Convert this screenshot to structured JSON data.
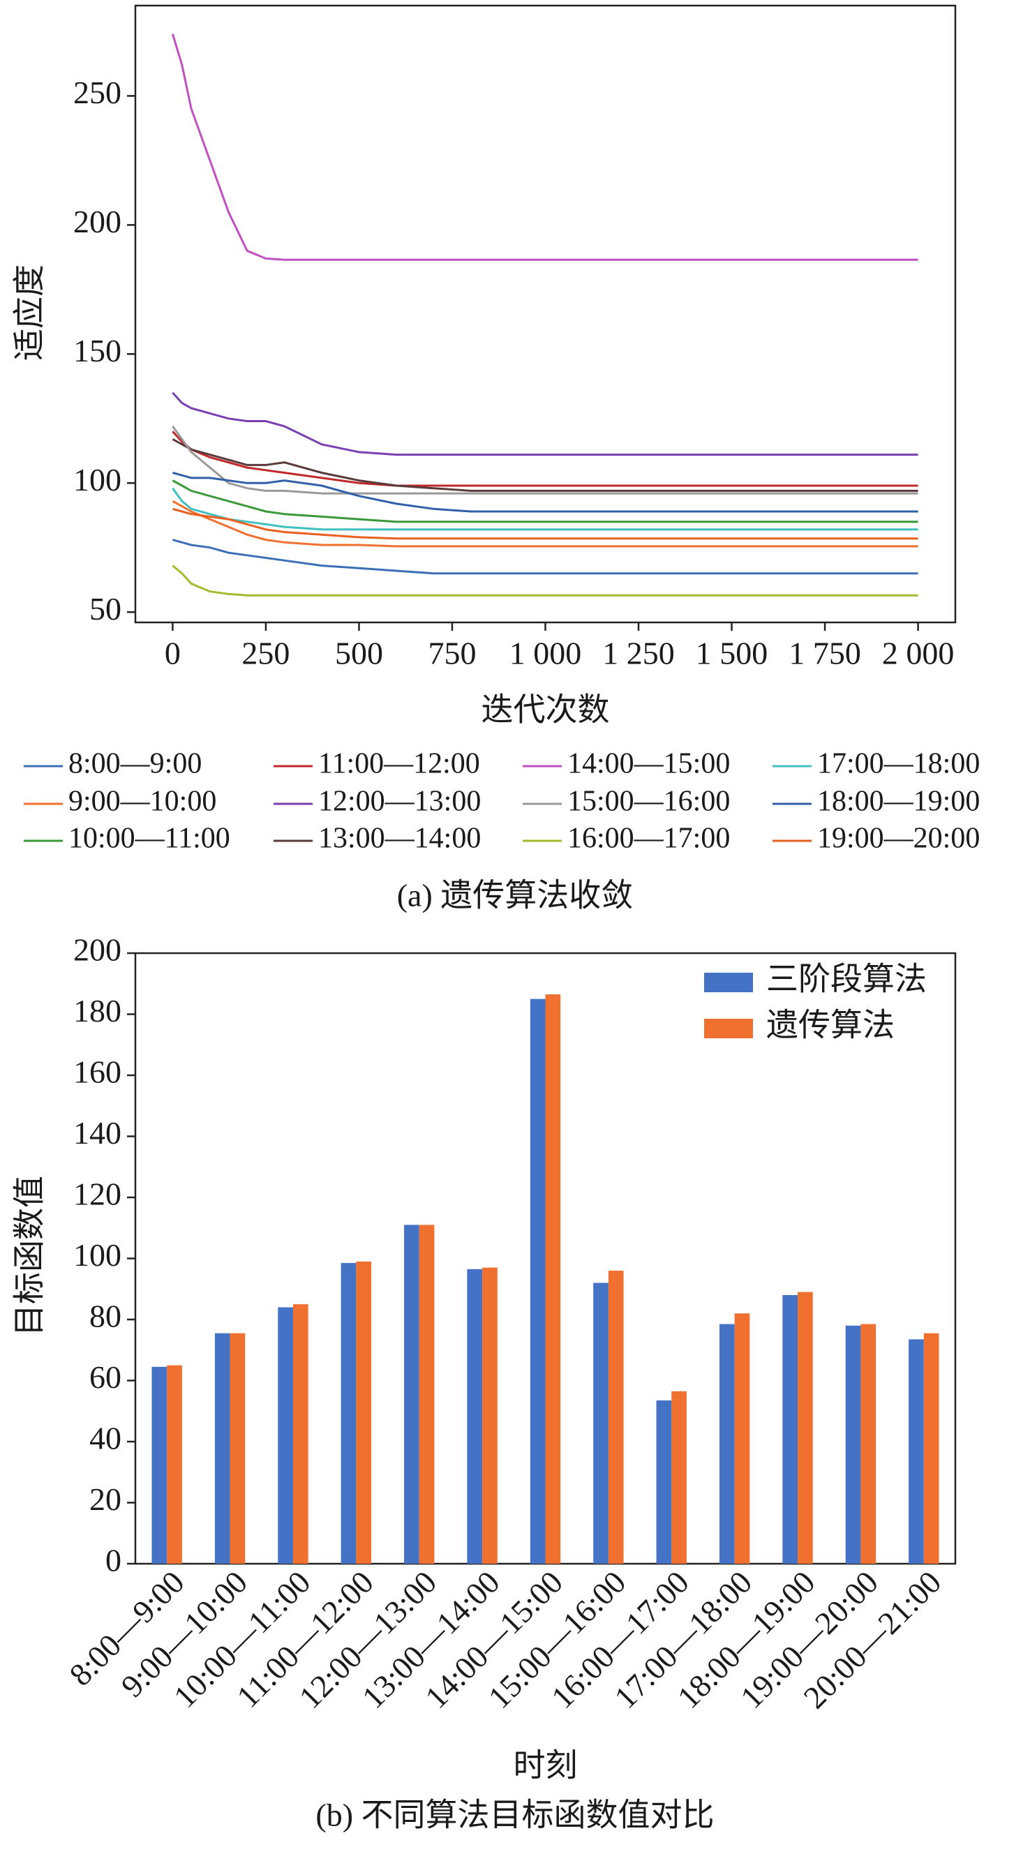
{
  "chart_data": [
    {
      "type": "line",
      "caption": "(a) 遗传算法收敛",
      "xlabel": "迭代次数",
      "ylabel": "适应度",
      "xlim": [
        -100,
        2100
      ],
      "ylim": [
        46,
        285
      ],
      "xticks": [
        0,
        250,
        500,
        750,
        {
          "value": 1000,
          "label": "1 000"
        },
        {
          "value": 1250,
          "label": "1 250"
        },
        {
          "value": 1500,
          "label": "1 500"
        },
        {
          "value": 1750,
          "label": "1 750"
        },
        {
          "value": 2000,
          "label": "2 000"
        }
      ],
      "yticks": [
        50,
        100,
        150,
        200,
        250
      ],
      "x": [
        0,
        25,
        50,
        100,
        150,
        200,
        250,
        300,
        400,
        500,
        600,
        700,
        800,
        1000,
        1500,
        2000
      ],
      "series": [
        {
          "name": "8:00—9:00",
          "color": "#3b6fb6",
          "values": [
            78,
            77,
            76,
            75,
            73,
            72,
            71,
            70,
            68,
            67,
            66,
            65,
            65,
            65,
            65,
            65
          ]
        },
        {
          "name": "9:00—10:00",
          "color": "#f07030",
          "values": [
            93,
            91,
            89,
            86,
            83,
            80,
            78,
            77,
            76,
            76,
            75.5,
            75.5,
            75.5,
            75.5,
            75.5,
            75.5
          ]
        },
        {
          "name": "10:00—11:00",
          "color": "#3a9a3a",
          "values": [
            101,
            99,
            97,
            95,
            93,
            91,
            89,
            88,
            87,
            86,
            85,
            85,
            85,
            85,
            85,
            85
          ]
        },
        {
          "name": "11:00—12:00",
          "color": "#c0282a",
          "values": [
            120,
            116,
            113,
            110,
            108,
            106,
            105,
            104,
            102,
            100,
            99,
            99,
            99,
            99,
            99,
            99
          ]
        },
        {
          "name": "12:00—13:00",
          "color": "#7a3fb0",
          "values": [
            135,
            131,
            129,
            127,
            125,
            124,
            124,
            122,
            115,
            112,
            111,
            111,
            111,
            111,
            111,
            111
          ]
        },
        {
          "name": "13:00—14:00",
          "color": "#5a3a3a",
          "values": [
            117,
            115,
            113,
            111,
            109,
            107,
            107,
            108,
            104,
            101,
            99,
            98,
            97,
            97,
            97,
            97
          ]
        },
        {
          "name": "14:00—15:00",
          "color": "#c050c0",
          "values": [
            274,
            262,
            245,
            225,
            205,
            190,
            187,
            186.5,
            186.5,
            186.5,
            186.5,
            186.5,
            186.5,
            186.5,
            186.5,
            186.5
          ]
        },
        {
          "name": "15:00—16:00",
          "color": "#999999",
          "values": [
            122,
            117,
            112,
            106,
            100,
            98,
            97,
            97,
            96,
            96,
            96,
            96,
            96,
            96,
            96,
            96
          ]
        },
        {
          "name": "16:00—17:00",
          "color": "#a8b830",
          "values": [
            68,
            65,
            61,
            58,
            57,
            56.5,
            56.5,
            56.5,
            56.5,
            56.5,
            56.5,
            56.5,
            56.5,
            56.5,
            56.5,
            56.5
          ]
        },
        {
          "name": "17:00—18:00",
          "color": "#40c0c0",
          "values": [
            98,
            93,
            90,
            88,
            86,
            85,
            84,
            83,
            82,
            82,
            82,
            82,
            82,
            82,
            82,
            82
          ]
        },
        {
          "name": "18:00—19:00",
          "color": "#3060a8",
          "values": [
            104,
            103,
            102,
            102,
            101,
            100,
            100,
            101,
            99,
            95,
            92,
            90,
            89,
            89,
            89,
            89
          ]
        },
        {
          "name": "19:00—20:00",
          "color": "#e86020",
          "values": [
            90,
            89,
            88,
            87,
            86,
            84,
            82,
            81,
            80,
            79,
            78.5,
            78.5,
            78.5,
            78.5,
            78.5,
            78.5
          ]
        }
      ]
    },
    {
      "type": "bar",
      "caption": "(b) 不同算法目标函数值对比",
      "xlabel": "时刻",
      "ylabel": "目标函数值",
      "ylim": [
        0,
        200
      ],
      "yticks": [
        0,
        20,
        40,
        60,
        80,
        100,
        120,
        140,
        160,
        180,
        200
      ],
      "categories": [
        "8:00—9:00",
        "9:00—10:00",
        "10:00—11:00",
        "11:00—12:00",
        "12:00—13:00",
        "13:00—14:00",
        "14:00—15:00",
        "15:00—16:00",
        "16:00—17:00",
        "17:00—18:00",
        "18:00—19:00",
        "19:00—20:00",
        "20:00—21:00"
      ],
      "series": [
        {
          "name": "三阶段算法",
          "color": "#4472c4",
          "values": [
            64.5,
            75.5,
            84,
            98.5,
            111,
            96.5,
            185,
            92,
            53.5,
            78.5,
            88,
            78,
            73.5
          ]
        },
        {
          "name": "遗传算法",
          "color": "#f07030",
          "values": [
            65,
            75.5,
            85,
            99,
            111,
            97,
            186.5,
            96,
            56.5,
            82,
            89,
            78.5,
            75.5
          ]
        }
      ]
    }
  ]
}
